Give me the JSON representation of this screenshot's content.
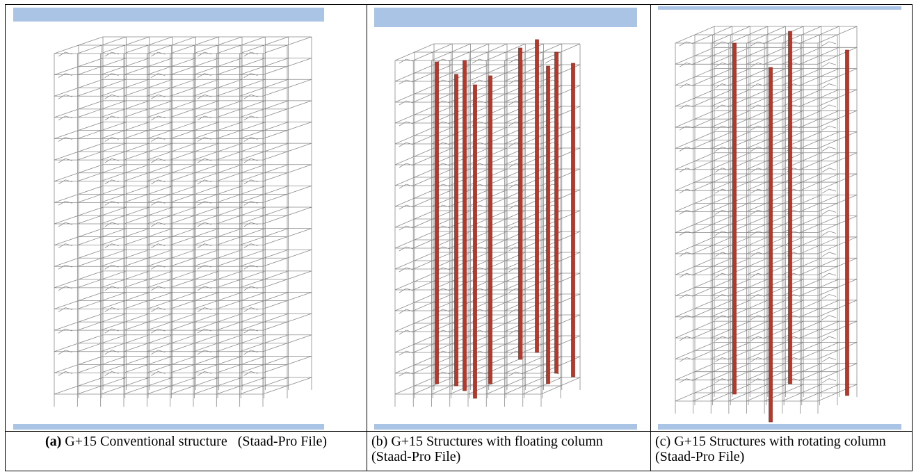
{
  "panels": [
    {
      "label": "(a)",
      "caption": "G+15 Conventional structure   (Staad-Pro File)"
    },
    {
      "caption": "(b) G+15 Structures with floating column (Staad-Pro File)"
    },
    {
      "caption": "(c) G+15 Structures with rotating column (Staad-Pro File)"
    }
  ]
}
